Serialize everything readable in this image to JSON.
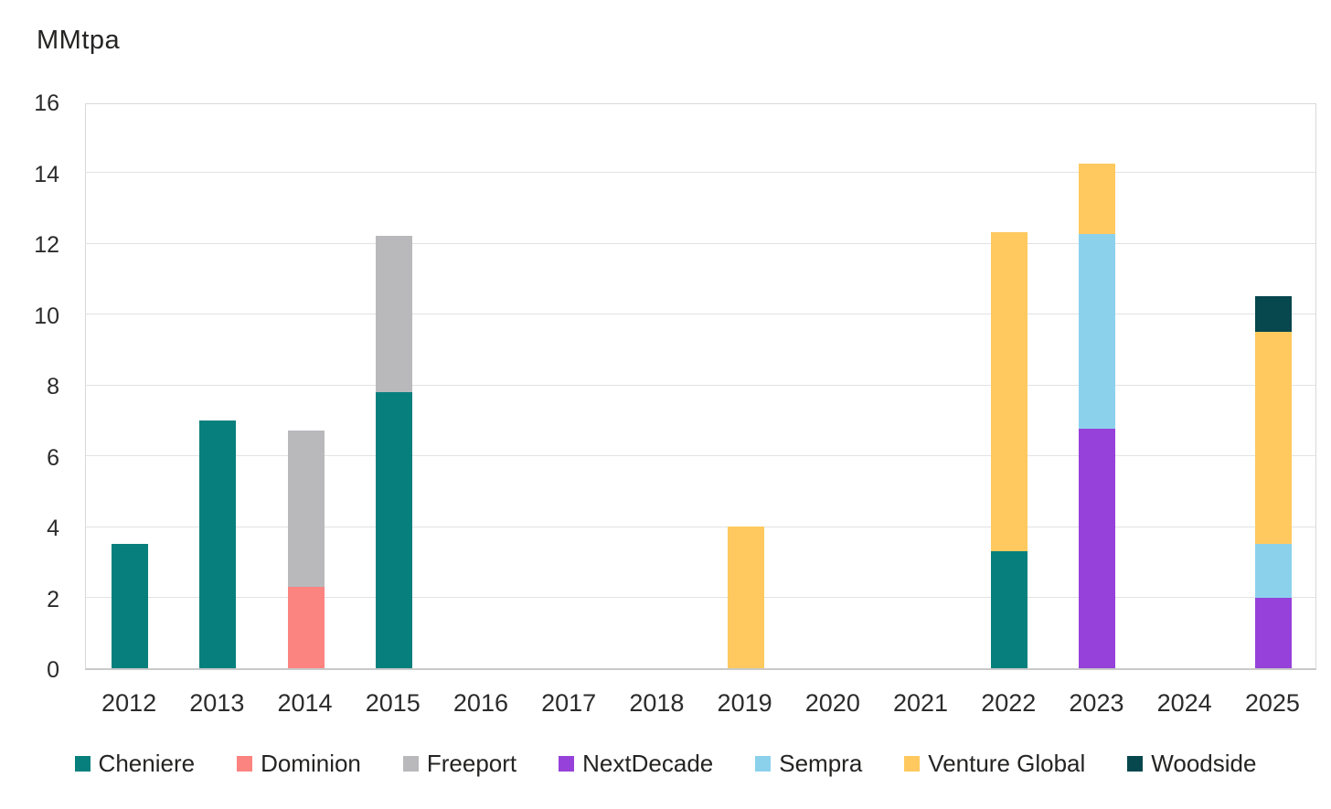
{
  "chart_data": {
    "type": "bar",
    "stacked": true,
    "title": "MMtpa",
    "xlabel": "",
    "ylabel": "MMtpa",
    "categories": [
      "2012",
      "2013",
      "2014",
      "2015",
      "2016",
      "2017",
      "2018",
      "2019",
      "2020",
      "2021",
      "2022",
      "2023",
      "2024",
      "2025"
    ],
    "series": [
      {
        "name": "Cheniere",
        "color": "#07807D",
        "values": [
          3.5,
          7.0,
          0,
          7.8,
          0,
          0,
          0,
          0,
          0,
          0,
          3.3,
          0,
          0,
          0
        ]
      },
      {
        "name": "Dominion",
        "color": "#FB8380",
        "values": [
          0,
          0,
          2.3,
          0,
          0,
          0,
          0,
          0,
          0,
          0,
          0,
          0,
          0,
          0
        ]
      },
      {
        "name": "Freeport",
        "color": "#B9B9BC",
        "values": [
          0,
          0,
          4.4,
          4.4,
          0,
          0,
          0,
          0,
          0,
          0,
          0,
          0,
          0,
          0
        ]
      },
      {
        "name": "NextDecade",
        "color": "#9641D9",
        "values": [
          0,
          0,
          0,
          0,
          0,
          0,
          0,
          0,
          0,
          0,
          0,
          6.75,
          0,
          2.0
        ]
      },
      {
        "name": "Sempra",
        "color": "#8BD1EC",
        "values": [
          0,
          0,
          0,
          0,
          0,
          0,
          0,
          0,
          0,
          0,
          0,
          5.5,
          0,
          1.5
        ]
      },
      {
        "name": "Venture Global",
        "color": "#FFC95F",
        "values": [
          0,
          0,
          0,
          0,
          0,
          0,
          0,
          4.0,
          0,
          0,
          9.0,
          2.0,
          0,
          6.0
        ]
      },
      {
        "name": "Woodside",
        "color": "#07474E",
        "values": [
          0,
          0,
          0,
          0,
          0,
          0,
          0,
          0,
          0,
          0,
          0,
          0,
          0,
          1.0
        ]
      }
    ],
    "totals_by_year": {
      "2012": 3.5,
      "2013": 7.0,
      "2014": 6.7,
      "2015": 12.2,
      "2016": 0,
      "2017": 0,
      "2018": 0,
      "2019": 4.0,
      "2020": 0,
      "2021": 0,
      "2022": 12.3,
      "2023": 14.25,
      "2024": 0,
      "2025": 10.5
    },
    "ylim": [
      0,
      16
    ],
    "ytick_step": 2,
    "ytick_labels": [
      "0",
      "2",
      "4",
      "6",
      "8",
      "10",
      "12",
      "14",
      "16"
    ],
    "grid": true,
    "legend_position": "bottom",
    "axis_colors": {
      "gridline": "#e2e2e2",
      "axis_line": "#c9c9c9",
      "tick_text": "#2b2b2b"
    }
  }
}
